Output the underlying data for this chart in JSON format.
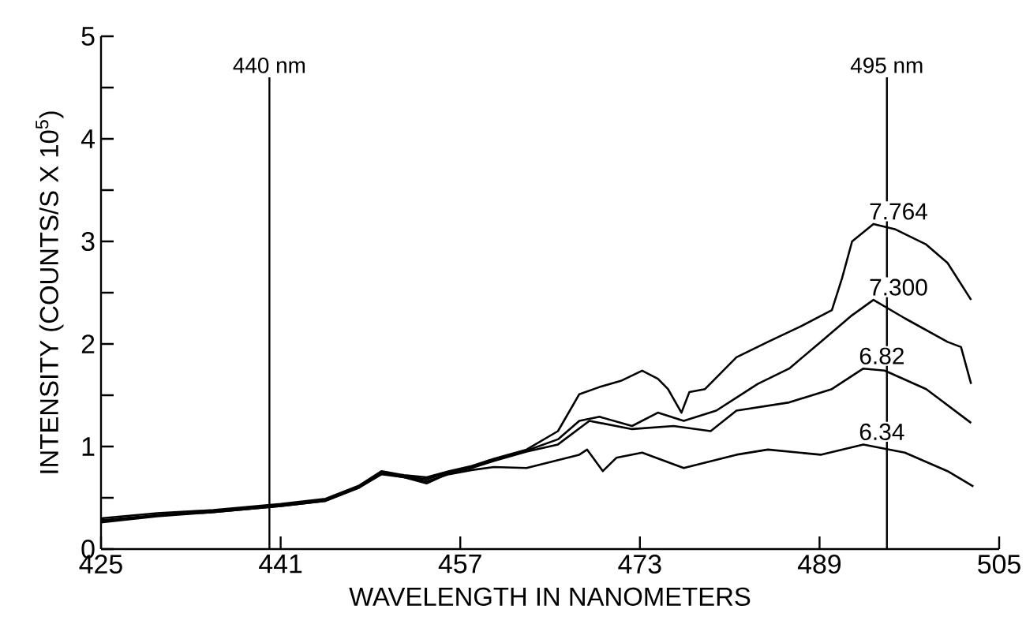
{
  "chart_data": {
    "type": "line",
    "xlabel": "WAVELENGTH IN NANOMETERS",
    "ylabel": "INTENSITY (COUNTS/S X 10$^{5}$)",
    "xlim": [
      425,
      505
    ],
    "xticks": [
      425,
      441,
      457,
      473,
      489,
      505
    ],
    "ylim": [
      0,
      5
    ],
    "yticks": [
      0,
      {
        "value": 0.5,
        "label": null
      },
      1,
      {
        "value": 1.5,
        "label": null
      },
      2,
      {
        "value": 2.5,
        "label": null
      },
      3,
      {
        "value": 3.5,
        "label": null
      },
      4,
      {
        "value": 4.5,
        "label": null
      },
      5
    ],
    "ref_lines": [
      {
        "axis": "x",
        "value": 440,
        "label": "440 nm"
      },
      {
        "axis": "x",
        "value": 495,
        "label": "495 nm"
      }
    ],
    "series": [
      {
        "name": "7.764",
        "color": "#000000",
        "x": [
          425,
          430,
          435,
          441,
          445,
          448,
          450,
          452,
          454,
          456,
          458,
          460,
          462.9,
          465.7,
          467.6,
          469.4,
          471.3,
          473.2,
          474.6,
          475.5,
          476.7,
          477.4,
          478.8,
          481.6,
          484.4,
          487.3,
          490.1,
          491.0,
          491.9,
          493.8,
          495.7,
          498.5,
          500.4,
          502.5
        ],
        "values": [
          0.3,
          0.35,
          0.38,
          0.44,
          0.49,
          0.62,
          0.76,
          0.72,
          0.7,
          0.76,
          0.81,
          0.88,
          0.97,
          1.15,
          1.51,
          1.58,
          1.64,
          1.74,
          1.66,
          1.56,
          1.33,
          1.53,
          1.56,
          1.87,
          2.02,
          2.17,
          2.33,
          2.64,
          3.0,
          3.17,
          3.12,
          2.97,
          2.79,
          2.43
        ]
      },
      {
        "name": "7.300",
        "color": "#000000",
        "x": [
          425,
          430,
          435,
          441,
          445,
          448,
          450,
          452,
          454,
          456,
          458,
          460,
          462.9,
          465.7,
          467.6,
          469.4,
          472.3,
          474.6,
          476.9,
          479.8,
          483.5,
          486.3,
          489.1,
          491.9,
          493.8,
          496.6,
          500.4,
          501.6,
          502.5
        ],
        "values": [
          0.28,
          0.33,
          0.37,
          0.43,
          0.48,
          0.61,
          0.75,
          0.71,
          0.68,
          0.75,
          0.8,
          0.87,
          0.96,
          1.07,
          1.25,
          1.29,
          1.2,
          1.33,
          1.25,
          1.35,
          1.61,
          1.76,
          2.02,
          2.28,
          2.43,
          2.25,
          2.02,
          1.97,
          1.61
        ]
      },
      {
        "name": "6.82",
        "color": "#000000",
        "x": [
          425,
          430,
          435,
          441,
          445,
          448,
          450,
          452,
          454,
          456,
          458,
          460,
          462.9,
          465.7,
          468.5,
          472.3,
          476.0,
          479.3,
          481.6,
          486.3,
          490.1,
          492.9,
          494.8,
          498.5,
          502.5
        ],
        "values": [
          0.27,
          0.33,
          0.36,
          0.42,
          0.47,
          0.6,
          0.74,
          0.7,
          0.64,
          0.74,
          0.79,
          0.86,
          0.95,
          1.02,
          1.25,
          1.17,
          1.2,
          1.15,
          1.35,
          1.43,
          1.56,
          1.76,
          1.74,
          1.56,
          1.23
        ]
      },
      {
        "name": "6.34",
        "color": "#000000",
        "x": [
          425,
          430,
          435,
          441,
          445,
          448,
          450,
          452,
          454,
          456,
          458,
          460,
          462.9,
          467.6,
          468.3,
          469.7,
          470.9,
          473.2,
          476.9,
          481.6,
          484.4,
          489.1,
          492.9,
          496.6,
          500.4,
          502.7
        ],
        "values": [
          0.26,
          0.32,
          0.36,
          0.42,
          0.47,
          0.6,
          0.73,
          0.7,
          0.66,
          0.73,
          0.77,
          0.8,
          0.79,
          0.92,
          0.97,
          0.76,
          0.89,
          0.94,
          0.79,
          0.92,
          0.97,
          0.92,
          1.02,
          0.94,
          0.76,
          0.61
        ]
      }
    ]
  }
}
